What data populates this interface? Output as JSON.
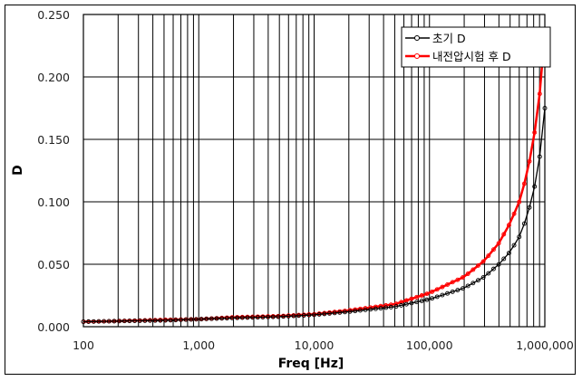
{
  "chart_data": {
    "type": "line",
    "title": "",
    "xlabel": "Freq [Hz]",
    "ylabel": "D",
    "xscale": "log",
    "xlim": [
      100,
      1000000
    ],
    "ylim": [
      0,
      0.25
    ],
    "grid": true,
    "legend_position": "top-right inside",
    "x_tick_labels": [
      "100",
      "1,000",
      "10,000",
      "100,000",
      "1,000,000"
    ],
    "y_tick_labels": [
      "0.000",
      "0.050",
      "0.100",
      "0.150",
      "0.200",
      "0.250"
    ],
    "x": [
      100,
      200,
      500,
      1000,
      2000,
      5000,
      10000,
      20000,
      50000,
      100000,
      200000,
      300000,
      400000,
      500000,
      600000,
      700000,
      800000,
      900000,
      1000000
    ],
    "series": [
      {
        "name": "초기 D",
        "color": "#000000",
        "marker": "open-circle",
        "values": [
          0.004,
          0.0045,
          0.005,
          0.006,
          0.007,
          0.008,
          0.0095,
          0.012,
          0.016,
          0.022,
          0.031,
          0.04,
          0.05,
          0.06,
          0.072,
          0.088,
          0.108,
          0.135,
          0.175
        ]
      },
      {
        "name": "내전압시험 후 D",
        "color": "#ff0000",
        "marker": "open-circle",
        "values": [
          0.004,
          0.0045,
          0.0055,
          0.006,
          0.0075,
          0.0085,
          0.01,
          0.013,
          0.018,
          0.027,
          0.04,
          0.053,
          0.067,
          0.083,
          0.1,
          0.122,
          0.15,
          0.185,
          0.236
        ]
      }
    ]
  }
}
